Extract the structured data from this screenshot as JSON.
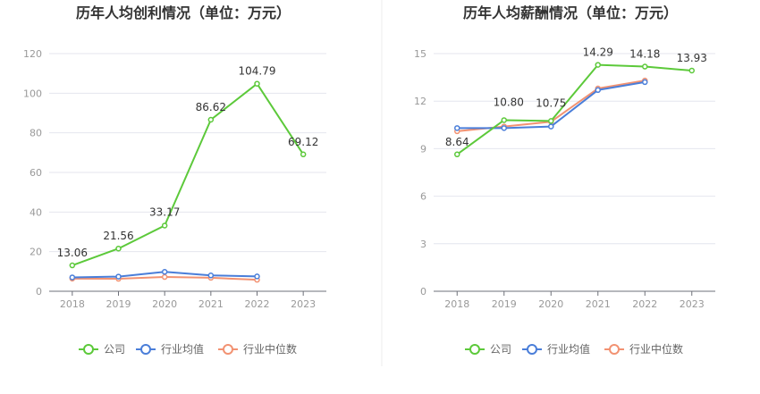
{
  "chart_data": [
    {
      "type": "line",
      "title": "历年人均创利情况（单位：万元）",
      "categories": [
        "2018",
        "2019",
        "2020",
        "2021",
        "2022",
        "2023"
      ],
      "ylim": [
        0,
        120
      ],
      "yticks": [
        0,
        20,
        40,
        60,
        80,
        100,
        120
      ],
      "grid": true,
      "legend_position": "bottom",
      "series": [
        {
          "name": "公司",
          "color": "#5cc93a",
          "values": [
            13.06,
            21.56,
            33.17,
            86.62,
            104.79,
            69.12
          ],
          "labels": [
            "13.06",
            "21.56",
            "33.17",
            "86.62",
            "104.79",
            "69.12"
          ]
        },
        {
          "name": "行业均值",
          "color": "#4a7ed9",
          "values": [
            7.0,
            7.4,
            9.8,
            8.0,
            7.5,
            null
          ]
        },
        {
          "name": "行业中位数",
          "color": "#f29272",
          "values": [
            6.4,
            6.3,
            7.2,
            6.8,
            5.8,
            null
          ]
        }
      ]
    },
    {
      "type": "line",
      "title": "历年人均薪酬情况（单位：万元）",
      "categories": [
        "2018",
        "2019",
        "2020",
        "2021",
        "2022",
        "2023"
      ],
      "ylim": [
        0,
        15
      ],
      "yticks": [
        0,
        3,
        6,
        9,
        12,
        15
      ],
      "grid": true,
      "legend_position": "bottom",
      "series": [
        {
          "name": "公司",
          "color": "#5cc93a",
          "values": [
            8.64,
            10.8,
            10.75,
            14.29,
            14.18,
            13.93
          ],
          "labels": [
            "8.64",
            "10.80",
            "10.75",
            "14.29",
            "14.18",
            "13.93"
          ]
        },
        {
          "name": "行业均值",
          "color": "#4a7ed9",
          "values": [
            10.3,
            10.3,
            10.4,
            12.7,
            13.2,
            null
          ]
        },
        {
          "name": "行业中位数",
          "color": "#f29272",
          "values": [
            10.1,
            10.4,
            10.7,
            12.8,
            13.3,
            null
          ]
        }
      ]
    }
  ]
}
